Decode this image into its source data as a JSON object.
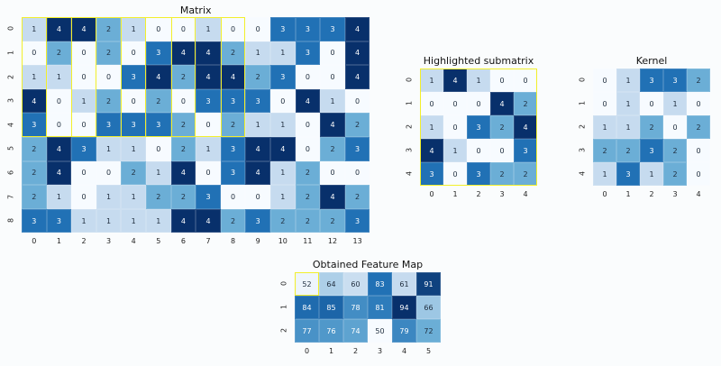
{
  "titles": {
    "matrix": "Matrix",
    "sub": "Highlighted submatrix",
    "kernel": "Kernel",
    "feature": "Obtained Feature Map"
  },
  "colors": {
    "highlight": "#f2ef2b",
    "colormap": [
      "#f7fbff",
      "#c6dbef",
      "#6baed6",
      "#2171b5",
      "#08306b"
    ]
  },
  "chart_data": [
    {
      "type": "heatmap",
      "title": "Matrix",
      "x_ticks": [
        "0",
        "1",
        "2",
        "3",
        "4",
        "5",
        "6",
        "7",
        "8",
        "9",
        "10",
        "11",
        "12",
        "13"
      ],
      "y_ticks": [
        "0",
        "1",
        "2",
        "3",
        "4",
        "5",
        "6",
        "7",
        "8"
      ],
      "values": [
        [
          1,
          4,
          4,
          2,
          1,
          0,
          0,
          1,
          0,
          0,
          3,
          3,
          3,
          4
        ],
        [
          0,
          2,
          0,
          2,
          0,
          3,
          4,
          4,
          2,
          1,
          1,
          3,
          0,
          4
        ],
        [
          1,
          1,
          0,
          0,
          3,
          4,
          2,
          4,
          4,
          2,
          3,
          0,
          0,
          4
        ],
        [
          4,
          0,
          1,
          2,
          0,
          2,
          0,
          3,
          3,
          3,
          0,
          4,
          1,
          0
        ],
        [
          3,
          0,
          0,
          3,
          3,
          3,
          2,
          0,
          2,
          1,
          1,
          0,
          4,
          2
        ],
        [
          2,
          4,
          3,
          1,
          1,
          0,
          2,
          1,
          3,
          4,
          4,
          0,
          2,
          3
        ],
        [
          2,
          4,
          0,
          0,
          2,
          1,
          4,
          0,
          3,
          4,
          1,
          2,
          0,
          0
        ],
        [
          2,
          1,
          0,
          1,
          1,
          2,
          2,
          3,
          0,
          0,
          1,
          2,
          4,
          2
        ],
        [
          3,
          3,
          1,
          1,
          1,
          1,
          4,
          4,
          2,
          3,
          2,
          2,
          2,
          3
        ]
      ],
      "vmin": 0,
      "vmax": 4,
      "highlights": [
        {
          "rows": [
            0,
            4
          ],
          "cols": [
            0,
            0
          ]
        },
        {
          "rows": [
            0,
            4
          ],
          "cols": [
            2,
            2
          ]
        },
        {
          "rows": [
            0,
            4
          ],
          "cols": [
            4,
            4
          ]
        },
        {
          "rows": [
            0,
            4
          ],
          "cols": [
            6,
            6
          ]
        },
        {
          "rows": [
            0,
            4
          ],
          "cols": [
            8,
            8
          ]
        },
        {
          "rows": [
            0,
            4
          ],
          "cols": [
            0,
            8
          ]
        }
      ]
    },
    {
      "type": "heatmap",
      "title": "Highlighted submatrix",
      "x_ticks": [
        "0",
        "1",
        "2",
        "3",
        "4"
      ],
      "y_ticks": [
        "0",
        "1",
        "2",
        "3",
        "4"
      ],
      "values": [
        [
          1,
          4,
          1,
          0,
          0
        ],
        [
          0,
          0,
          0,
          4,
          2
        ],
        [
          1,
          0,
          3,
          2,
          4
        ],
        [
          4,
          1,
          0,
          0,
          3
        ],
        [
          3,
          0,
          3,
          2,
          2
        ]
      ],
      "vmin": 0,
      "vmax": 4,
      "highlights": [
        {
          "rows": [
            0,
            4
          ],
          "cols": [
            0,
            4
          ]
        }
      ]
    },
    {
      "type": "heatmap",
      "title": "Kernel",
      "x_ticks": [
        "0",
        "1",
        "2",
        "3",
        "4"
      ],
      "y_ticks": [
        "0",
        "1",
        "2",
        "3",
        "4"
      ],
      "values": [
        [
          0,
          1,
          3,
          3,
          2
        ],
        [
          0,
          1,
          0,
          1,
          0
        ],
        [
          1,
          1,
          2,
          0,
          2
        ],
        [
          2,
          2,
          3,
          2,
          0
        ],
        [
          1,
          3,
          1,
          2,
          0
        ]
      ],
      "vmin": 0,
      "vmax": 4,
      "highlights": []
    },
    {
      "type": "heatmap",
      "title": "Obtained Feature Map",
      "x_ticks": [
        "0",
        "1",
        "2",
        "3",
        "4",
        "5"
      ],
      "y_ticks": [
        "0",
        "1",
        "2"
      ],
      "values": [
        [
          52,
          64,
          60,
          83,
          61,
          91
        ],
        [
          84,
          85,
          78,
          81,
          94,
          66
        ],
        [
          77,
          76,
          74,
          50,
          79,
          72
        ]
      ],
      "vmin": 50,
      "vmax": 94,
      "highlights": [
        {
          "rows": [
            0,
            0
          ],
          "cols": [
            0,
            0
          ]
        }
      ]
    }
  ]
}
